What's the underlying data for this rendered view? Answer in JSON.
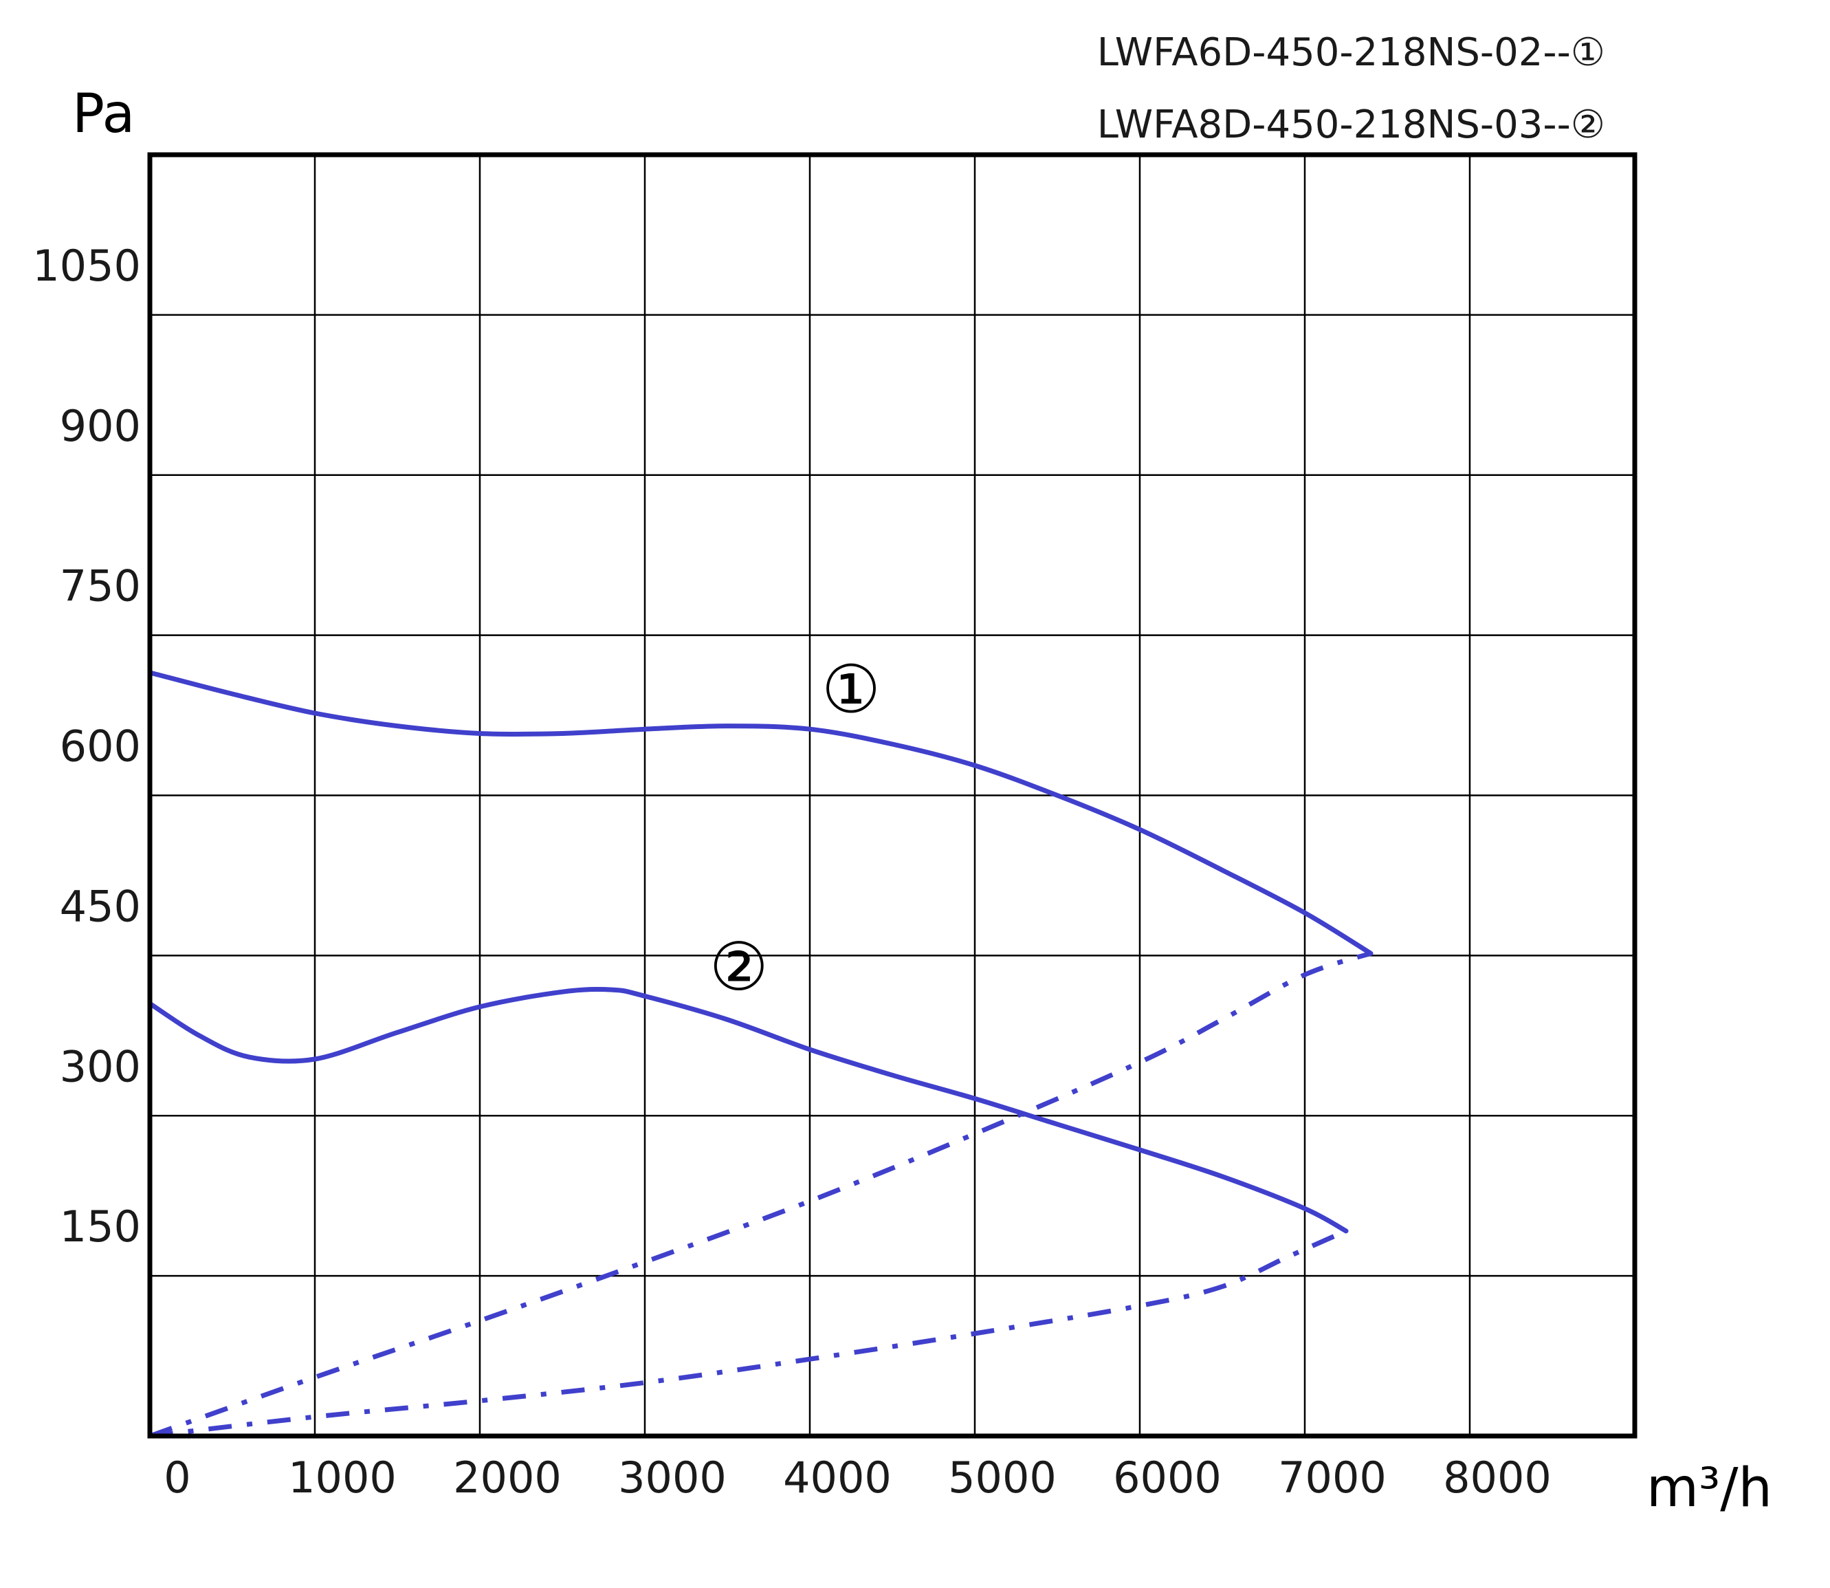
{
  "chart_data": {
    "type": "line",
    "xlabel": "m³/h",
    "ylabel": "Pa",
    "xlim": [
      0,
      9000
    ],
    "ylim": [
      0,
      1200
    ],
    "x_ticks": [
      "0",
      "1000",
      "2000",
      "3000",
      "4000",
      "5000",
      "6000",
      "7000",
      "8000"
    ],
    "y_ticks": [
      "150",
      "300",
      "450",
      "600",
      "750",
      "900",
      "1050"
    ],
    "grid": true,
    "legend": [
      "LWFA6D-450-218NS-02--①",
      "LWFA8D-450-218NS-03--②"
    ],
    "series": [
      {
        "name": "①",
        "style": "solid",
        "color": "#4040cc",
        "x": [
          0,
          500,
          1000,
          1500,
          2000,
          2500,
          3000,
          3500,
          4000,
          4500,
          5000,
          5500,
          6000,
          6500,
          7000,
          7400
        ],
        "y": [
          715,
          695,
          677,
          665,
          658,
          658,
          662,
          665,
          662,
          648,
          628,
          600,
          568,
          530,
          490,
          452
        ]
      },
      {
        "name": "②",
        "style": "solid",
        "color": "#4040cc",
        "x": [
          0,
          300,
          600,
          1000,
          1500,
          2000,
          2500,
          2800,
          3000,
          3500,
          4000,
          4500,
          5000,
          5500,
          6000,
          6500,
          7000,
          7250
        ],
        "y": [
          405,
          375,
          355,
          353,
          378,
          402,
          416,
          418,
          412,
          390,
          362,
          338,
          316,
          292,
          268,
          243,
          213,
          192
        ]
      },
      {
        "name": "①",
        "style": "dash-dot",
        "color": "#4040cc",
        "x": [
          0,
          1000,
          2000,
          3000,
          4000,
          5000,
          6000,
          6500,
          7000,
          7400
        ],
        "y": [
          0,
          55,
          108,
          163,
          220,
          283,
          350,
          390,
          432,
          452
        ]
      },
      {
        "name": "②",
        "style": "dash-dot",
        "color": "#4040cc",
        "x": [
          0,
          1000,
          2000,
          3000,
          4000,
          5000,
          6000,
          6500,
          6900,
          7250
        ],
        "y": [
          0,
          18,
          33,
          50,
          72,
          96,
          122,
          140,
          168,
          192
        ]
      }
    ],
    "markers": [
      {
        "label": "①",
        "x": 4250,
        "y": 700
      },
      {
        "label": "②",
        "x": 3570,
        "y": 440
      }
    ]
  }
}
